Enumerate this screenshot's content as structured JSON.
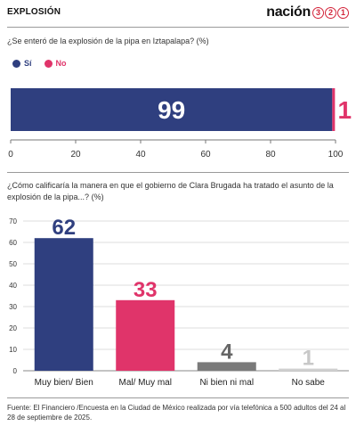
{
  "header": {
    "section": "EXPLOSIÓN",
    "logo_word": "nación",
    "logo_digits": [
      "3",
      "2",
      "1"
    ]
  },
  "q1": {
    "text": "¿Se enteró de la explosión de la pipa en Iztapalapa?  (%)"
  },
  "q2": {
    "text": "¿Cómo calificaría la manera en que el gobierno de Clara Brugada ha tratado el asunto de la explosión de la pipa...? (%)"
  },
  "legend": [
    {
      "label": "Sí",
      "color": "#2f3f7f"
    },
    {
      "label": "No",
      "color": "#e0346a"
    }
  ],
  "source": "Fuente: El Financiero /Encuesta en la Ciudad de México realizada por vía telefónica a 500 adultos del 24 al 28 de septiembre de 2025.",
  "chart_data": [
    {
      "type": "bar",
      "orientation": "horizontal-stacked",
      "series": [
        {
          "name": "Sí",
          "values": [
            99
          ],
          "color": "#2f3f7f"
        },
        {
          "name": "No",
          "values": [
            1
          ],
          "color": "#e0346a"
        }
      ],
      "xlim": [
        0,
        100
      ],
      "xticks": [
        0,
        20,
        40,
        60,
        80,
        100
      ],
      "data_labels": [
        "99",
        "1"
      ]
    },
    {
      "type": "bar",
      "categories": [
        "Muy bien/ Bien",
        "Mal/ Muy mal",
        "Ni bien ni mal",
        "No sabe"
      ],
      "values": [
        62,
        33,
        4,
        1
      ],
      "colors": [
        "#2f3f7f",
        "#e0346a",
        "#7a7a7a",
        "#d0d0d0"
      ],
      "label_colors": [
        "#2f3f7f",
        "#e0346a",
        "#666666",
        "#c8c8c8"
      ],
      "ylim": [
        0,
        70
      ],
      "yticks": [
        0,
        10,
        20,
        30,
        40,
        50,
        60,
        70
      ],
      "grid": true
    }
  ]
}
